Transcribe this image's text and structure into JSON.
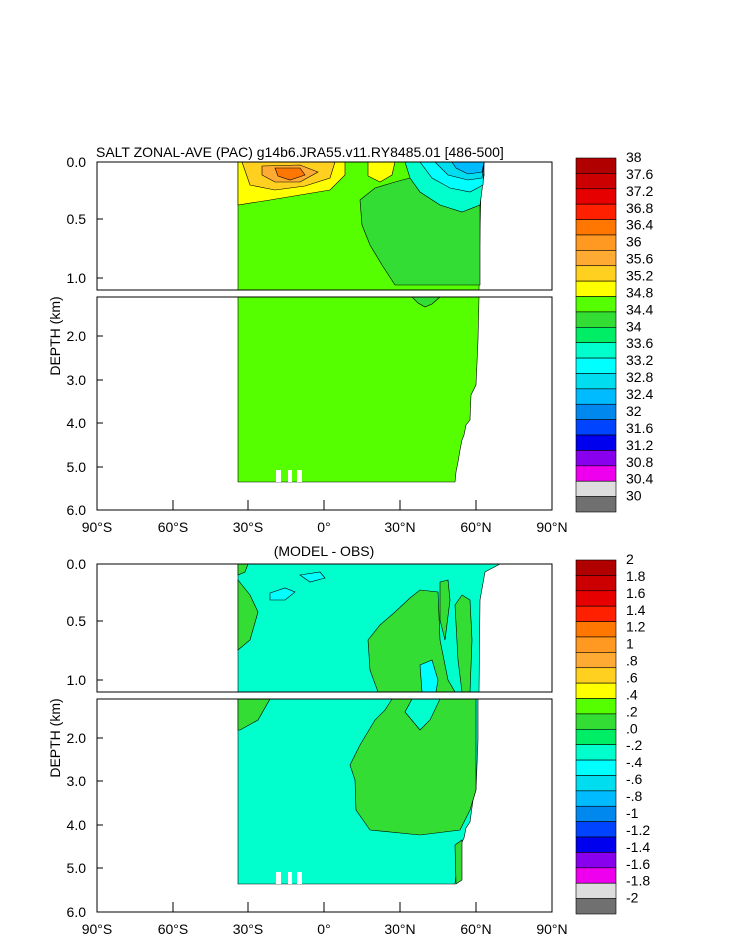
{
  "chart_data": [
    {
      "type": "contour",
      "title": "SALT ZONAL-AVE (PAC) g14b6.JRA55.v11.RY8485.01 [486-500]",
      "ylabel": "DEPTH (km)",
      "xlabel": "",
      "xlim": [
        -90,
        90
      ],
      "ylim": [
        0,
        6
      ],
      "y_break_km": 1.1,
      "x_ticks": [
        -90,
        -60,
        -30,
        0,
        30,
        60,
        90
      ],
      "x_tick_labels": [
        "90°S",
        "60°S",
        "30°S",
        "0°",
        "30°N",
        "60°N",
        "90°N"
      ],
      "y_ticks_upper": [
        "0.0",
        "0.5",
        "1.0"
      ],
      "y_ticks_lower": [
        "2.0",
        "3.0",
        "4.0",
        "5.0",
        "6.0"
      ],
      "colorbar_levels": [
        "38",
        "37.6",
        "37.2",
        "36.8",
        "36.4",
        "36",
        "35.6",
        "35.2",
        "34.8",
        "34.4",
        "34",
        "33.6",
        "33.2",
        "32.8",
        "32.4",
        "32",
        "31.6",
        "31.2",
        "30.8",
        "30.4",
        "30"
      ],
      "dominant_value_range": [
        34.4,
        34.8
      ],
      "ocean_extent_lat": [
        -34,
        62
      ]
    },
    {
      "type": "contour",
      "title": "(MODEL - OBS)",
      "ylabel": "DEPTH (km)",
      "xlabel": "",
      "xlim": [
        -90,
        90
      ],
      "ylim": [
        0,
        6
      ],
      "y_break_km": 1.1,
      "x_ticks": [
        -90,
        -60,
        -30,
        0,
        30,
        60,
        90
      ],
      "x_tick_labels": [
        "90°S",
        "60°S",
        "30°S",
        "0°",
        "30°N",
        "60°N",
        "90°N"
      ],
      "y_ticks_upper": [
        "0.0",
        "0.5",
        "1.0"
      ],
      "y_ticks_lower": [
        "2.0",
        "3.0",
        "4.0",
        "5.0",
        "6.0"
      ],
      "colorbar_levels": [
        "2",
        "1.8",
        "1.6",
        "1.4",
        "1.2",
        "1",
        ".8",
        ".6",
        ".4",
        ".2",
        ".0",
        "-.2",
        "-.4",
        "-.6",
        "-.8",
        "-1",
        "-1.2",
        "-1.4",
        "-1.6",
        "-1.8",
        "-2"
      ],
      "dominant_value_range": [
        -0.2,
        0.0
      ],
      "ocean_extent_lat": [
        -34,
        62
      ]
    }
  ],
  "palette_top": [
    "#b00000",
    "#cc0000",
    "#e60000",
    "#ff2000",
    "#ff7700",
    "#ff9922",
    "#ffaa33",
    "#ffd020",
    "#ffff00",
    "#55ff00",
    "#33dd33",
    "#00ee66",
    "#00ffcc",
    "#00ffff",
    "#00ddee",
    "#00bbff",
    "#0088ee",
    "#0044ff",
    "#0000ee",
    "#8800ee",
    "#ee00ee",
    "#dddddd",
    "#707070"
  ],
  "palette_bottom": [
    "#b00000",
    "#cc0000",
    "#e60000",
    "#ff2000",
    "#ff7700",
    "#ff9922",
    "#ffaa33",
    "#ffd020",
    "#ffff00",
    "#55ff00",
    "#33dd33",
    "#00ee66",
    "#00ffcc",
    "#00ffff",
    "#00ddee",
    "#00bbff",
    "#0088ee",
    "#0044ff",
    "#0000ee",
    "#8800ee",
    "#ee00ee",
    "#dddddd",
    "#707070"
  ]
}
